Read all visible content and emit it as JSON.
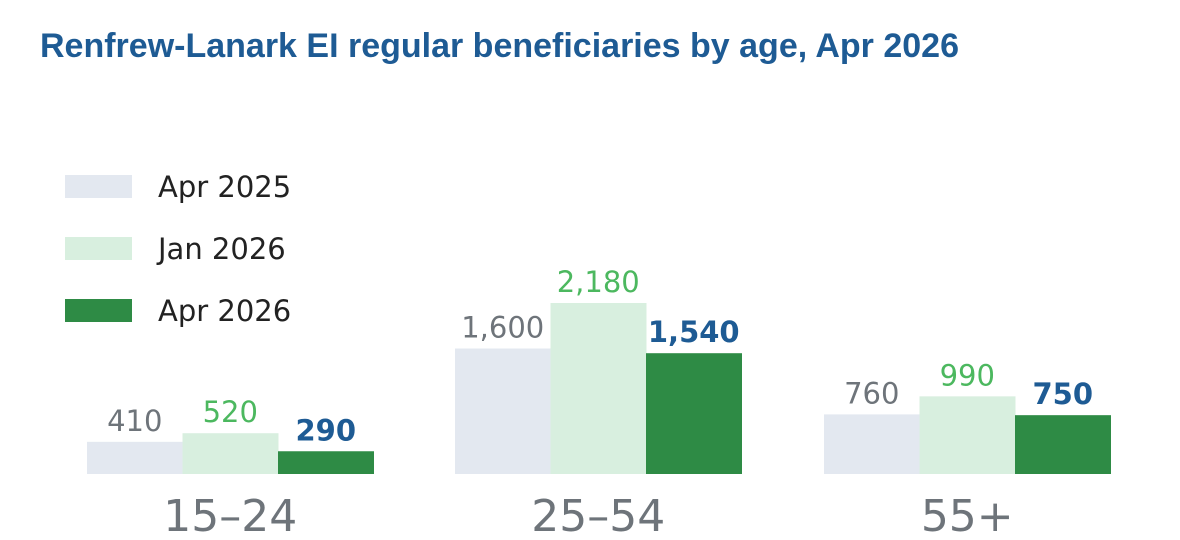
{
  "chart_data": {
    "type": "bar",
    "title": "Renfrew-Lanark EI regular beneficiaries by age, Apr 2026",
    "categories": [
      "15–24",
      "25–54",
      "55+"
    ],
    "series": [
      {
        "name": "Apr 2025",
        "values": [
          410,
          1600,
          760
        ],
        "labels": [
          "410",
          "1,600",
          "760"
        ],
        "color": "#e3e8f0",
        "label_color": "#6e747a"
      },
      {
        "name": "Jan 2026",
        "values": [
          520,
          2180,
          990
        ],
        "labels": [
          "520",
          "2,180",
          "990"
        ],
        "color": "#d8efdf",
        "label_color": "#4cb85f"
      },
      {
        "name": "Apr 2026",
        "values": [
          290,
          1540,
          750
        ],
        "labels": [
          "290",
          "1,540",
          "750"
        ],
        "color": "#2e8b45",
        "label_color": "#1e5b94"
      }
    ],
    "ylim": [
      0,
      2180
    ],
    "legend_position": "top-left",
    "grid": false
  },
  "colors": {
    "title": "#1e5b94",
    "category_label": "#6e747a"
  }
}
